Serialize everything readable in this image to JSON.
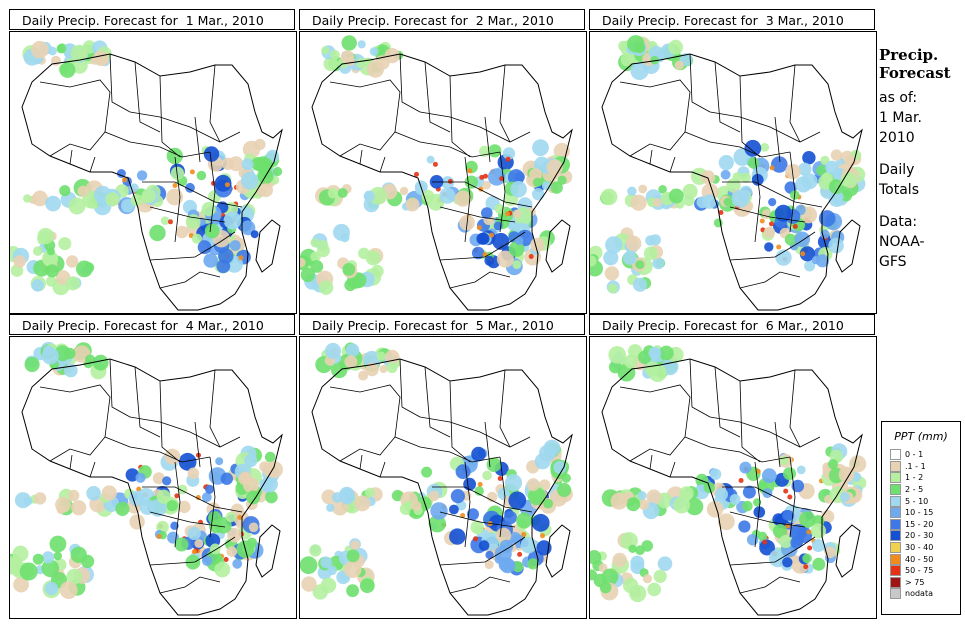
{
  "panels": [
    {
      "title": "Daily Precip. Forecast for  1 Mar., 2010",
      "day": 1
    },
    {
      "title": "Daily Precip. Forecast for  2 Mar., 2010",
      "day": 2
    },
    {
      "title": "Daily Precip. Forecast for  3 Mar., 2010",
      "day": 3
    },
    {
      "title": "Daily Precip. Forecast for  4 Mar., 2010",
      "day": 4
    },
    {
      "title": "Daily Precip. Forecast for  5 Mar., 2010",
      "day": 5
    },
    {
      "title": "Daily Precip. Forecast for  6 Mar., 2010",
      "day": 6
    }
  ],
  "sidebar": {
    "heading1": "Precip.",
    "heading2": "Forecast",
    "asof": "as of:",
    "date1": "1 Mar.",
    "date2": "2010",
    "daily1": "Daily",
    "daily2": "Totals",
    "data1": "Data:",
    "data2": "NOAA-",
    "data3": "GFS"
  },
  "legend": {
    "title": "PPT (mm)",
    "items": [
      {
        "label": "0 - 1",
        "color": "#ffffff"
      },
      {
        "label": ".1 - 1",
        "color": "#e8d2b4"
      },
      {
        "label": "1 - 2",
        "color": "#b4f0a0"
      },
      {
        "label": "2 - 5",
        "color": "#6ee06e"
      },
      {
        "label": "5 - 10",
        "color": "#a0d8f0"
      },
      {
        "label": "10 - 15",
        "color": "#6eaaf0"
      },
      {
        "label": "15 - 20",
        "color": "#3c78e6"
      },
      {
        "label": "20 - 30",
        "color": "#1450d2"
      },
      {
        "label": "30 - 40",
        "color": "#f0d250"
      },
      {
        "label": "40 - 50",
        "color": "#f08c1e"
      },
      {
        "label": "50 - 75",
        "color": "#e63214"
      },
      {
        "label": "> 75",
        "color": "#a01414"
      },
      {
        "label": "nodata",
        "color": "#c8c8c8"
      }
    ]
  }
}
